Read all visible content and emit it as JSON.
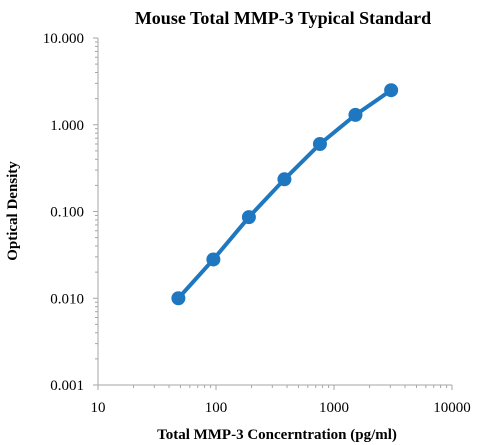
{
  "chart_data": {
    "type": "line",
    "title": "Mouse Total MMP-3 Typical Standard",
    "xlabel": "Total MMP-3  Concerntration (pg/ml)",
    "ylabel": "Optical Density",
    "x_scale": "log",
    "y_scale": "log",
    "xlim": [
      10,
      10000
    ],
    "ylim": [
      0.001,
      10
    ],
    "x_ticks": [
      10,
      100,
      1000,
      10000
    ],
    "x_tick_labels": [
      "10",
      "100",
      "1000",
      "10000"
    ],
    "y_ticks": [
      0.001,
      0.01,
      0.1,
      1,
      10
    ],
    "y_tick_labels": [
      "0.001",
      "0.010",
      "0.100",
      "1.000",
      "10.000"
    ],
    "grid": false,
    "series": [
      {
        "x": [
          48,
          95,
          190,
          380,
          760,
          1520,
          3050
        ],
        "y": [
          0.01,
          0.028,
          0.086,
          0.235,
          0.6,
          1.3,
          2.5
        ],
        "color": "#1f77bf"
      }
    ]
  }
}
